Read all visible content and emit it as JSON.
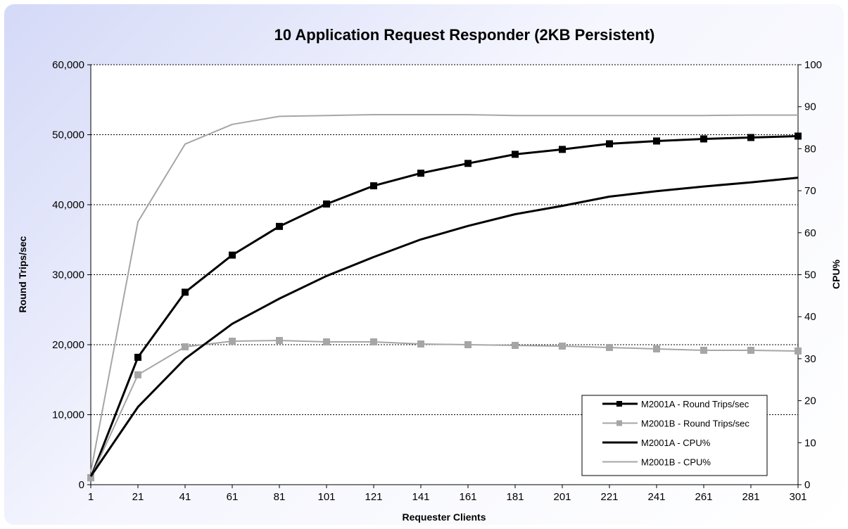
{
  "chart_data": {
    "type": "line",
    "title": "10 Application Request Responder (2KB Persistent)",
    "xlabel": "Requester Clients",
    "ylabel": "Round Trips/sec",
    "y2label": "CPU%",
    "x": [
      1,
      21,
      41,
      61,
      81,
      101,
      121,
      141,
      161,
      181,
      201,
      221,
      241,
      261,
      281,
      301
    ],
    "xlim": [
      1,
      301
    ],
    "ylim": [
      0,
      60000
    ],
    "y2lim": [
      0,
      100
    ],
    "yticks": [
      "0",
      "10,000",
      "20,000",
      "30,000",
      "40,000",
      "50,000",
      "60,000"
    ],
    "y2ticks": [
      "0",
      "10",
      "20",
      "30",
      "40",
      "50",
      "60",
      "70",
      "80",
      "90",
      "100"
    ],
    "grid": true,
    "legend_position": "bottom-right",
    "series": [
      {
        "name": "M2001A - Round Trips/sec",
        "axis": "left",
        "color": "#000000",
        "marker": "square",
        "values": [
          1000,
          18200,
          27500,
          32800,
          36900,
          40100,
          42700,
          44500,
          45900,
          47200,
          47900,
          48700,
          49100,
          49400,
          49600,
          49800
        ]
      },
      {
        "name": "M2001B - Round Trips/sec",
        "axis": "left",
        "color": "#a6a6a6",
        "marker": "square",
        "values": [
          1000,
          15700,
          19700,
          20500,
          20600,
          20400,
          20400,
          20100,
          20000,
          19900,
          19800,
          19600,
          19400,
          19200,
          19200,
          19100
        ]
      },
      {
        "name": "M2001A - CPU%",
        "axis": "right",
        "color": "#000000",
        "marker": "none",
        "values": [
          2,
          18.5,
          30,
          38.3,
          44.3,
          49.7,
          54.2,
          58.4,
          61.6,
          64.4,
          66.4,
          68.6,
          69.9,
          71,
          72,
          73.1
        ]
      },
      {
        "name": "M2001B - CPU%",
        "axis": "right",
        "color": "#a6a6a6",
        "marker": "none",
        "values": [
          3,
          62.6,
          81.1,
          85.8,
          87.7,
          87.9,
          88.1,
          88.1,
          88.1,
          87.9,
          87.9,
          87.9,
          87.9,
          87.9,
          88,
          88
        ]
      }
    ]
  }
}
